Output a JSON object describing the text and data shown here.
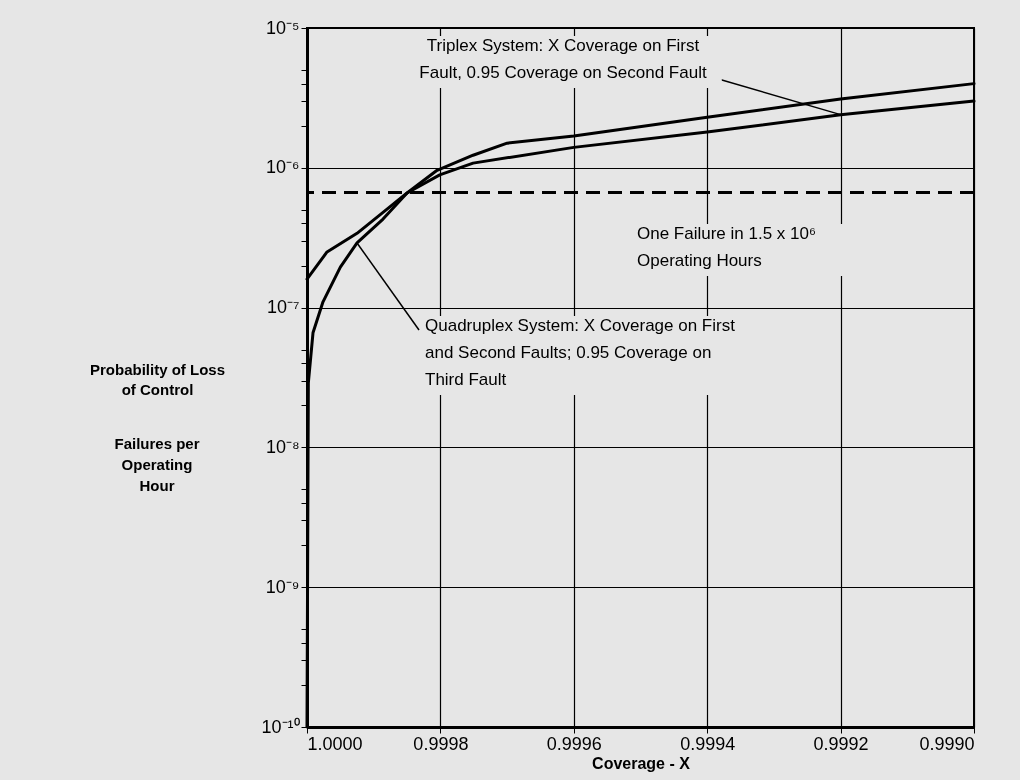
{
  "chart_data": {
    "type": "line",
    "xlabel": "Coverage - X",
    "ylabel": "Probability of Loss of Control",
    "annotations": [
      "Failures per Operating Hour",
      {
        "text": "Triplex System: X Coverage on First Fault, 0.95 Coverage on Second Fault",
        "x": 0.9992,
        "y": 2.4e-06
      },
      {
        "text": "Quadruplex System: X Coverage on First and Second Faults; 0.95 Coverage on Third Fault",
        "x": 0.999925,
        "y": 2.9e-07
      }
    ],
    "log": "y",
    "grid": true,
    "line_style": "solid",
    "xlim": [
      1.0,
      0.999
    ],
    "xticks": [
      {
        "value": 1.0,
        "label": "1.0000"
      },
      {
        "value": 0.9998,
        "label": "0.9998"
      },
      {
        "value": 0.9996,
        "label": "0.9996"
      },
      {
        "value": 0.9994,
        "label": "0.9994"
      },
      {
        "value": 0.9992,
        "label": "0.9992"
      },
      {
        "value": 0.999,
        "label": "0.9990"
      }
    ],
    "ylim": [
      1e-10,
      1e-05
    ],
    "yticks": [
      {
        "value": 1e-10,
        "label": "10⁻¹⁰"
      },
      {
        "value": 2e-10,
        "label": null
      },
      {
        "value": 3e-10,
        "label": null
      },
      {
        "value": 4e-10,
        "label": null
      },
      {
        "value": 5e-10,
        "label": null
      },
      {
        "value": 1e-09,
        "label": "10⁻⁹"
      },
      {
        "value": 2e-09,
        "label": null
      },
      {
        "value": 3e-09,
        "label": null
      },
      {
        "value": 4e-09,
        "label": null
      },
      {
        "value": 5e-09,
        "label": null
      },
      {
        "value": 1e-08,
        "label": "10⁻⁸"
      },
      {
        "value": 2e-08,
        "label": null
      },
      {
        "value": 3e-08,
        "label": null
      },
      {
        "value": 4e-08,
        "label": null
      },
      {
        "value": 5e-08,
        "label": null
      },
      {
        "value": 1e-07,
        "label": "10⁻⁷"
      },
      {
        "value": 2e-07,
        "label": null
      },
      {
        "value": 3e-07,
        "label": null
      },
      {
        "value": 4e-07,
        "label": null
      },
      {
        "value": 5e-07,
        "label": null
      },
      {
        "value": 1e-06,
        "label": "10⁻⁶"
      },
      {
        "value": 2e-06,
        "label": null
      },
      {
        "value": 3e-06,
        "label": null
      },
      {
        "value": 4e-06,
        "label": null
      },
      {
        "value": 5e-06,
        "label": null
      },
      {
        "value": 1e-05,
        "label": "10⁻⁵"
      }
    ],
    "ref_lines": [
      {
        "axis": "y",
        "value": 6.67e-07,
        "label": "One Failure in 1.5 x 10⁶ Operating Hours",
        "color": "#000000",
        "line_style": "dashed"
      }
    ],
    "series": [
      {
        "color": "#000000",
        "x": [
          1.0,
          0.99997,
          0.999925,
          0.999886,
          0.99985,
          0.999801,
          0.999751,
          0.9996,
          0.9994,
          0.9992,
          0.999
        ],
        "values": [
          1.6e-07,
          2.5e-07,
          3.4e-07,
          4.8e-07,
          6.6e-07,
          8.9e-07,
          1.08e-06,
          1.4e-06,
          1.8e-06,
          2.4e-06,
          3e-06
        ]
      },
      {
        "color": "#000000",
        "x": [
          1.0,
          0.999998,
          0.999991,
          0.999976,
          0.99995,
          0.999925,
          0.999886,
          0.99985,
          0.999805,
          0.999751,
          0.9997,
          0.9996,
          0.9994,
          0.9992,
          0.999
        ],
        "values": [
          1e-10,
          2.9e-08,
          6.6e-08,
          1.1e-07,
          1.95e-07,
          2.9e-07,
          4.3e-07,
          6.6e-07,
          9.6e-07,
          1.23e-06,
          1.5e-06,
          1.69e-06,
          2.3e-06,
          3.1e-06,
          4e-06
        ]
      }
    ]
  }
}
